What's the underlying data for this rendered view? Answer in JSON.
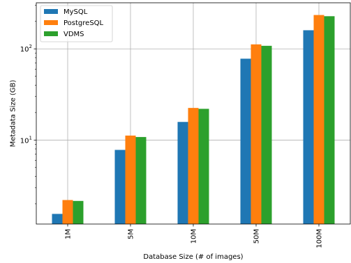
{
  "chart_data": {
    "type": "bar",
    "categories": [
      "1M",
      "5M",
      "10M",
      "50M",
      "100M"
    ],
    "series": [
      {
        "name": "MySQL",
        "color": "#1f77b4",
        "values": [
          1.55,
          7.8,
          15.8,
          78,
          160
        ]
      },
      {
        "name": "PostgreSQL",
        "color": "#ff7f0e",
        "values": [
          2.2,
          11.2,
          22.5,
          112,
          235
        ]
      },
      {
        "name": "VDMS",
        "color": "#2ca02c",
        "values": [
          2.15,
          10.8,
          22.0,
          108,
          228
        ]
      }
    ],
    "xlabel": "Database Size (# of images)",
    "ylabel": "Metadata Size (GB)",
    "yscale": "log",
    "ylim": [
      1.2,
      320
    ],
    "yticks": [
      {
        "value": 10,
        "base": "10",
        "exp": "1"
      },
      {
        "value": 100,
        "base": "10",
        "exp": "2"
      }
    ],
    "grid": true,
    "legend_position": "top-left"
  }
}
